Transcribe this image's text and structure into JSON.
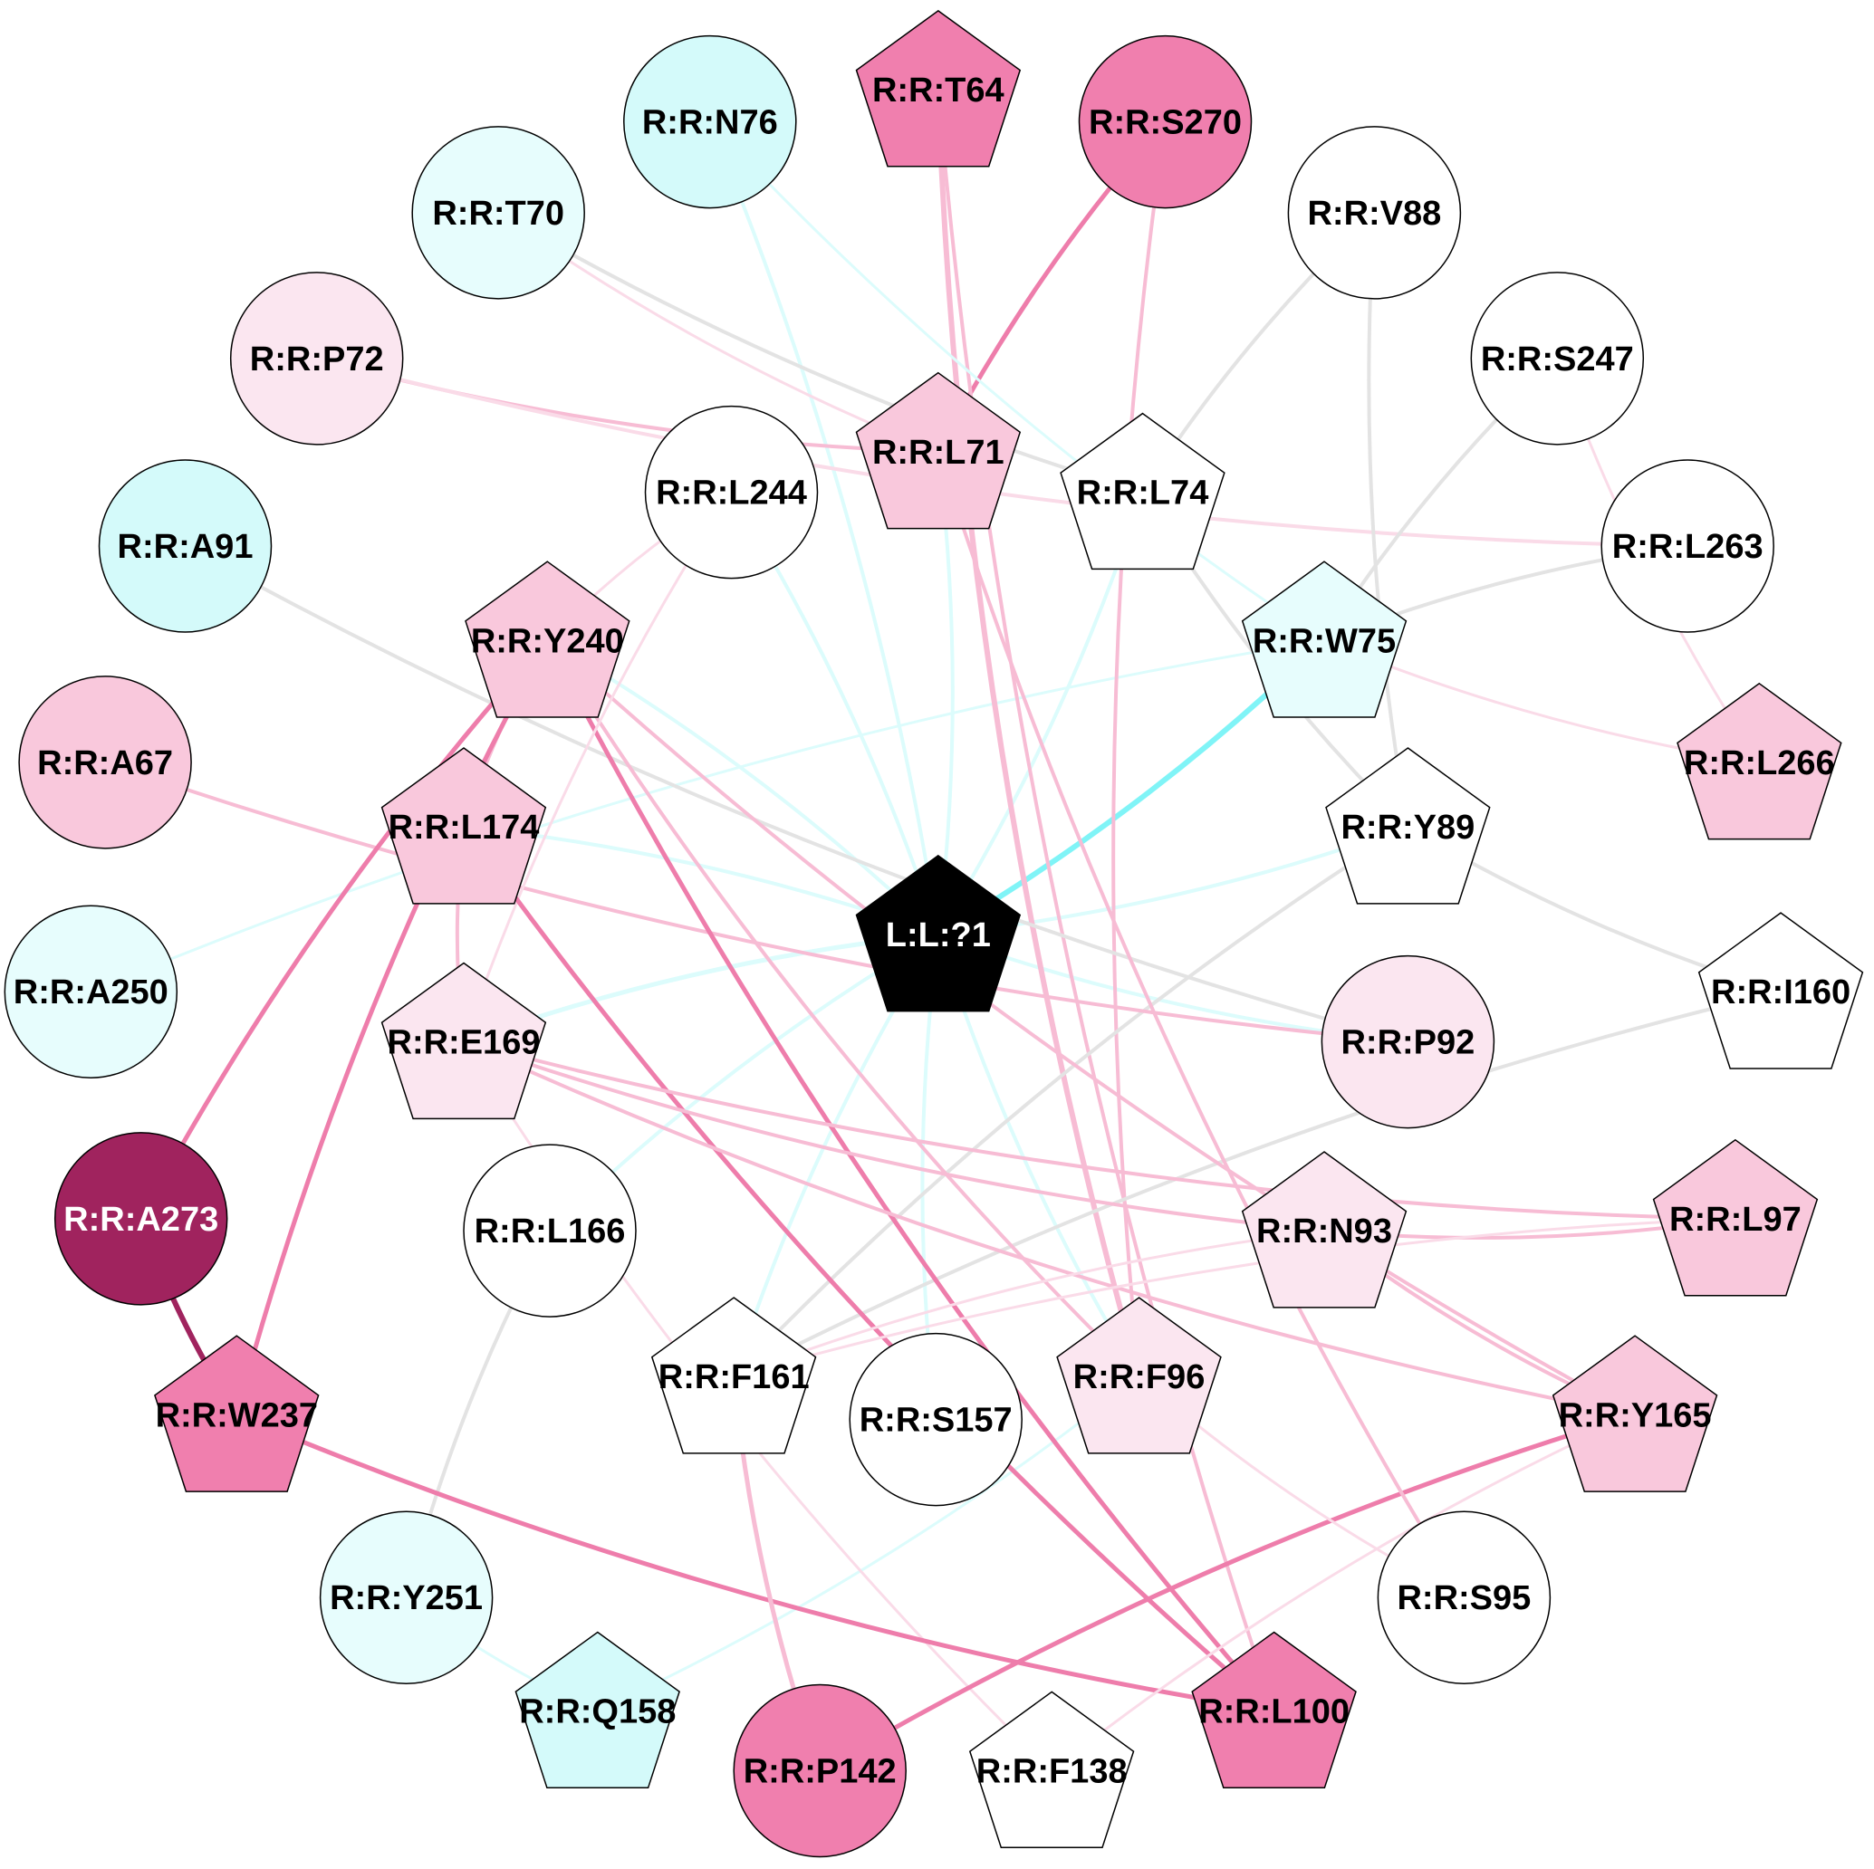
{
  "colors": {
    "white": "#ffffff",
    "cyan": "#d4fafa",
    "cyan_light": "#e7fdfd",
    "pink_pale": "#fbe6f0",
    "pink_light": "#f9c8dc",
    "pink_mid": "#f07fae",
    "maroon": "#a0235e",
    "black": "#000000",
    "edge_grey": "#e3e3e3",
    "edge_pink_pale": "#fadbe8",
    "edge_pink_light": "#f7bcd4",
    "edge_pink_mid": "#ee7dab",
    "edge_maroon": "#a0235e",
    "edge_cyan_pale": "#dcfcfc",
    "edge_cyan": "#80f4f7"
  },
  "nodes": [
    {
      "id": "T64",
      "label": "R:R:T64",
      "shape": "pentagon",
      "fill": "pink_mid"
    },
    {
      "id": "N76",
      "label": "R:R:N76",
      "shape": "circle",
      "fill": "cyan"
    },
    {
      "id": "S270",
      "label": "R:R:S270",
      "shape": "circle",
      "fill": "pink_mid"
    },
    {
      "id": "T70",
      "label": "R:R:T70",
      "shape": "circle",
      "fill": "cyan_light"
    },
    {
      "id": "V88",
      "label": "R:R:V88",
      "shape": "circle",
      "fill": "white"
    },
    {
      "id": "P72",
      "label": "R:R:P72",
      "shape": "circle",
      "fill": "pink_pale"
    },
    {
      "id": "S247",
      "label": "R:R:S247",
      "shape": "circle",
      "fill": "white"
    },
    {
      "id": "L71",
      "label": "R:R:L71",
      "shape": "pentagon",
      "fill": "pink_light"
    },
    {
      "id": "L244",
      "label": "R:R:L244",
      "shape": "circle",
      "fill": "white"
    },
    {
      "id": "L74",
      "label": "R:R:L74",
      "shape": "pentagon",
      "fill": "white"
    },
    {
      "id": "A91",
      "label": "R:R:A91",
      "shape": "circle",
      "fill": "cyan"
    },
    {
      "id": "L263",
      "label": "R:R:L263",
      "shape": "circle",
      "fill": "white"
    },
    {
      "id": "Y240",
      "label": "R:R:Y240",
      "shape": "pentagon",
      "fill": "pink_light"
    },
    {
      "id": "W75",
      "label": "R:R:W75",
      "shape": "pentagon",
      "fill": "cyan_light"
    },
    {
      "id": "A67",
      "label": "R:R:A67",
      "shape": "circle",
      "fill": "pink_light"
    },
    {
      "id": "L266",
      "label": "R:R:L266",
      "shape": "pentagon",
      "fill": "pink_light"
    },
    {
      "id": "L174",
      "label": "R:R:L174",
      "shape": "pentagon",
      "fill": "pink_light"
    },
    {
      "id": "Y89",
      "label": "R:R:Y89",
      "shape": "pentagon",
      "fill": "white"
    },
    {
      "id": "LIG",
      "label": "L:L:?1",
      "shape": "pentagon",
      "fill": "black",
      "text_color": "#ffffff"
    },
    {
      "id": "I160",
      "label": "R:R:I160",
      "shape": "pentagon",
      "fill": "white"
    },
    {
      "id": "A250",
      "label": "R:R:A250",
      "shape": "circle",
      "fill": "cyan_light"
    },
    {
      "id": "E169",
      "label": "R:R:E169",
      "shape": "pentagon",
      "fill": "pink_pale"
    },
    {
      "id": "P92",
      "label": "R:R:P92",
      "shape": "circle",
      "fill": "pink_pale"
    },
    {
      "id": "A273",
      "label": "R:R:A273",
      "shape": "circle",
      "fill": "maroon",
      "text_color": "#ffffff"
    },
    {
      "id": "L97",
      "label": "R:R:L97",
      "shape": "pentagon",
      "fill": "pink_light"
    },
    {
      "id": "L166",
      "label": "R:R:L166",
      "shape": "circle",
      "fill": "white"
    },
    {
      "id": "N93",
      "label": "R:R:N93",
      "shape": "pentagon",
      "fill": "pink_pale"
    },
    {
      "id": "F161",
      "label": "R:R:F161",
      "shape": "pentagon",
      "fill": "white"
    },
    {
      "id": "S157",
      "label": "R:R:S157",
      "shape": "circle",
      "fill": "white"
    },
    {
      "id": "F96",
      "label": "R:R:F96",
      "shape": "pentagon",
      "fill": "pink_pale"
    },
    {
      "id": "W237",
      "label": "R:R:W237",
      "shape": "pentagon",
      "fill": "pink_mid"
    },
    {
      "id": "Y165",
      "label": "R:R:Y165",
      "shape": "pentagon",
      "fill": "pink_light"
    },
    {
      "id": "Y251",
      "label": "R:R:Y251",
      "shape": "circle",
      "fill": "cyan_light"
    },
    {
      "id": "S95",
      "label": "R:R:S95",
      "shape": "circle",
      "fill": "white"
    },
    {
      "id": "Q158",
      "label": "R:R:Q158",
      "shape": "pentagon",
      "fill": "cyan"
    },
    {
      "id": "L100",
      "label": "R:R:L100",
      "shape": "pentagon",
      "fill": "pink_mid"
    },
    {
      "id": "P142",
      "label": "R:R:P142",
      "shape": "circle",
      "fill": "pink_mid"
    },
    {
      "id": "F138",
      "label": "R:R:F138",
      "shape": "pentagon",
      "fill": "white"
    }
  ],
  "edges": [
    {
      "source": "LIG",
      "target": "W75",
      "color": "edge_cyan",
      "weight": 6
    },
    {
      "source": "LIG",
      "target": "N76",
      "color": "edge_cyan_pale",
      "weight": 4
    },
    {
      "source": "LIG",
      "target": "L71",
      "color": "edge_cyan_pale",
      "weight": 4
    },
    {
      "source": "LIG",
      "target": "L244",
      "color": "edge_cyan_pale",
      "weight": 4
    },
    {
      "source": "LIG",
      "target": "L74",
      "color": "edge_cyan_pale",
      "weight": 4
    },
    {
      "source": "LIG",
      "target": "Y240",
      "color": "edge_cyan_pale",
      "weight": 4
    },
    {
      "source": "LIG",
      "target": "L174",
      "color": "edge_cyan_pale",
      "weight": 4
    },
    {
      "source": "LIG",
      "target": "Y89",
      "color": "edge_cyan_pale",
      "weight": 4
    },
    {
      "source": "LIG",
      "target": "E169",
      "color": "edge_cyan_pale",
      "weight": 5
    },
    {
      "source": "LIG",
      "target": "P92",
      "color": "edge_cyan_pale",
      "weight": 4
    },
    {
      "source": "LIG",
      "target": "F161",
      "color": "edge_cyan_pale",
      "weight": 4
    },
    {
      "source": "LIG",
      "target": "S157",
      "color": "edge_cyan_pale",
      "weight": 4
    },
    {
      "source": "LIG",
      "target": "F96",
      "color": "edge_cyan_pale",
      "weight": 4
    },
    {
      "source": "LIG",
      "target": "L166",
      "color": "edge_cyan_pale",
      "weight": 4
    },
    {
      "source": "W75",
      "target": "A250",
      "color": "edge_cyan_pale",
      "weight": 3
    },
    {
      "source": "Q158",
      "target": "F96",
      "color": "edge_cyan_pale",
      "weight": 3
    },
    {
      "source": "S270",
      "target": "L71",
      "color": "edge_pink_mid",
      "weight": 5
    },
    {
      "source": "T64",
      "target": "F96",
      "color": "edge_pink_light",
      "weight": 6
    },
    {
      "source": "T64",
      "target": "L100",
      "color": "edge_pink_light",
      "weight": 4
    },
    {
      "source": "S270",
      "target": "F96",
      "color": "edge_pink_light",
      "weight": 4
    },
    {
      "source": "P72",
      "target": "L71",
      "color": "edge_pink_light",
      "weight": 4
    },
    {
      "source": "P72",
      "target": "L263",
      "color": "edge_pink_pale",
      "weight": 4
    },
    {
      "source": "T70",
      "target": "L71",
      "color": "edge_pink_pale",
      "weight": 3
    },
    {
      "source": "T70",
      "target": "L74",
      "color": "edge_grey",
      "weight": 4
    },
    {
      "source": "V88",
      "target": "L74",
      "color": "edge_grey",
      "weight": 4
    },
    {
      "source": "V88",
      "target": "Y89",
      "color": "edge_grey",
      "weight": 4
    },
    {
      "source": "S247",
      "target": "W75",
      "color": "edge_grey",
      "weight": 4
    },
    {
      "source": "L263",
      "target": "W75",
      "color": "edge_grey",
      "weight": 4
    },
    {
      "source": "S247",
      "target": "L266",
      "color": "edge_pink_pale",
      "weight": 3
    },
    {
      "source": "W75",
      "target": "L266",
      "color": "edge_pink_pale",
      "weight": 3
    },
    {
      "source": "L74",
      "target": "Y89",
      "color": "edge_grey",
      "weight": 4
    },
    {
      "source": "A91",
      "target": "P92",
      "color": "edge_grey",
      "weight": 4
    },
    {
      "source": "Y89",
      "target": "I160",
      "color": "edge_grey",
      "weight": 4
    },
    {
      "source": "Y89",
      "target": "F161",
      "color": "edge_grey",
      "weight": 4
    },
    {
      "source": "I160",
      "target": "F161",
      "color": "edge_grey",
      "weight": 4
    },
    {
      "source": "L166",
      "target": "Y251",
      "color": "edge_grey",
      "weight": 4
    },
    {
      "source": "Y251",
      "target": "Q158",
      "color": "edge_cyan_pale",
      "weight": 3
    },
    {
      "source": "A67",
      "target": "P92",
      "color": "edge_pink_light",
      "weight": 4
    },
    {
      "source": "Y240",
      "target": "L174",
      "color": "edge_pink_light",
      "weight": 4
    },
    {
      "source": "Y240",
      "target": "L100",
      "color": "edge_pink_mid",
      "weight": 5
    },
    {
      "source": "Y240",
      "target": "A273",
      "color": "edge_pink_mid",
      "weight": 5
    },
    {
      "source": "Y240",
      "target": "W237",
      "color": "edge_pink_mid",
      "weight": 5
    },
    {
      "source": "Y240",
      "target": "F96",
      "color": "edge_pink_light",
      "weight": 4
    },
    {
      "source": "Y240",
      "target": "Y165",
      "color": "edge_pink_light",
      "weight": 4
    },
    {
      "source": "L244",
      "target": "Y240",
      "color": "edge_pink_pale",
      "weight": 3
    },
    {
      "source": "L244",
      "target": "E169",
      "color": "edge_pink_pale",
      "weight": 3
    },
    {
      "source": "L174",
      "target": "E169",
      "color": "edge_pink_light",
      "weight": 4
    },
    {
      "source": "L174",
      "target": "L100",
      "color": "edge_pink_mid",
      "weight": 5
    },
    {
      "source": "E169",
      "target": "L97",
      "color": "edge_pink_light",
      "weight": 4
    },
    {
      "source": "E169",
      "target": "Y165",
      "color": "edge_pink_light",
      "weight": 4
    },
    {
      "source": "E169",
      "target": "N93",
      "color": "edge_pink_light",
      "weight": 4
    },
    {
      "source": "E169",
      "target": "F138",
      "color": "edge_pink_pale",
      "weight": 3
    },
    {
      "source": "N93",
      "target": "L97",
      "color": "edge_pink_light",
      "weight": 4
    },
    {
      "source": "N93",
      "target": "Y165",
      "color": "edge_pink_light",
      "weight": 4
    },
    {
      "source": "N93",
      "target": "F161",
      "color": "edge_pink_pale",
      "weight": 3
    },
    {
      "source": "L97",
      "target": "F161",
      "color": "edge_pink_pale",
      "weight": 3
    },
    {
      "source": "A273",
      "target": "W237",
      "color": "edge_maroon",
      "weight": 6
    },
    {
      "source": "W237",
      "target": "L100",
      "color": "edge_pink_mid",
      "weight": 5
    },
    {
      "source": "Y165",
      "target": "P142",
      "color": "edge_pink_mid",
      "weight": 5
    },
    {
      "source": "Y165",
      "target": "F138",
      "color": "edge_pink_pale",
      "weight": 3
    },
    {
      "source": "F161",
      "target": "P142",
      "color": "edge_pink_light",
      "weight": 5
    },
    {
      "source": "F96",
      "target": "S95",
      "color": "edge_pink_pale",
      "weight": 3
    },
    {
      "source": "L71",
      "target": "S95",
      "color": "edge_pink_light",
      "weight": 4
    },
    {
      "source": "N76",
      "target": "W75",
      "color": "edge_cyan_pale",
      "weight": 3
    }
  ]
}
